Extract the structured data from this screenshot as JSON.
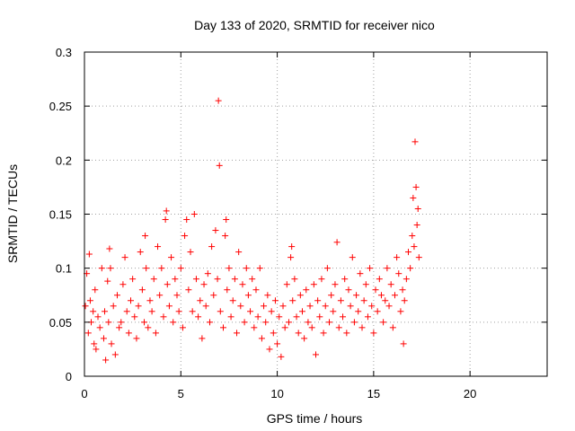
{
  "chart_data": {
    "type": "scatter",
    "title": "Day 133 of 2020, SRMTID for receiver nico",
    "xlabel": "GPS time / hours",
    "ylabel": "SRMTID / TECUs",
    "xlim": [
      0,
      24
    ],
    "ylim": [
      0,
      0.3
    ],
    "xticks": [
      0,
      5,
      10,
      15,
      20
    ],
    "xtick_labels": [
      "0",
      "5",
      "10",
      "15",
      "20"
    ],
    "yticks": [
      0,
      0.05,
      0.1,
      0.15,
      0.2,
      0.25,
      0.3
    ],
    "ytick_labels": [
      "0",
      "0.05",
      "0.1",
      "0.15",
      "0.2",
      "0.25",
      "0.3"
    ],
    "grid": true,
    "marker": "plus",
    "color": "#ff0000",
    "x_range_of_data": [
      0,
      17.35
    ],
    "series": [
      {
        "name": "SRMTID",
        "points": [
          [
            0.05,
            0.065
          ],
          [
            0.12,
            0.095
          ],
          [
            0.2,
            0.04
          ],
          [
            0.25,
            0.113
          ],
          [
            0.3,
            0.07
          ],
          [
            0.35,
            0.05
          ],
          [
            0.45,
            0.06
          ],
          [
            0.5,
            0.03
          ],
          [
            0.55,
            0.08
          ],
          [
            0.6,
            0.025
          ],
          [
            0.7,
            0.055
          ],
          [
            0.8,
            0.045
          ],
          [
            0.9,
            0.1
          ],
          [
            1.0,
            0.035
          ],
          [
            1.05,
            0.06
          ],
          [
            1.1,
            0.015
          ],
          [
            1.2,
            0.088
          ],
          [
            1.25,
            0.05
          ],
          [
            1.3,
            0.118
          ],
          [
            1.35,
            0.1
          ],
          [
            1.4,
            0.03
          ],
          [
            1.5,
            0.065
          ],
          [
            1.6,
            0.02
          ],
          [
            1.7,
            0.075
          ],
          [
            1.8,
            0.045
          ],
          [
            1.9,
            0.05
          ],
          [
            2.0,
            0.085
          ],
          [
            2.1,
            0.11
          ],
          [
            2.2,
            0.06
          ],
          [
            2.3,
            0.04
          ],
          [
            2.4,
            0.07
          ],
          [
            2.5,
            0.09
          ],
          [
            2.6,
            0.055
          ],
          [
            2.7,
            0.035
          ],
          [
            2.8,
            0.065
          ],
          [
            2.9,
            0.115
          ],
          [
            3.0,
            0.08
          ],
          [
            3.1,
            0.05
          ],
          [
            3.15,
            0.13
          ],
          [
            3.2,
            0.1
          ],
          [
            3.3,
            0.045
          ],
          [
            3.4,
            0.07
          ],
          [
            3.5,
            0.06
          ],
          [
            3.6,
            0.09
          ],
          [
            3.7,
            0.04
          ],
          [
            3.8,
            0.12
          ],
          [
            3.9,
            0.075
          ],
          [
            4.0,
            0.1
          ],
          [
            4.1,
            0.055
          ],
          [
            4.2,
            0.145
          ],
          [
            4.25,
            0.153
          ],
          [
            4.3,
            0.085
          ],
          [
            4.4,
            0.065
          ],
          [
            4.5,
            0.11
          ],
          [
            4.6,
            0.05
          ],
          [
            4.7,
            0.09
          ],
          [
            4.8,
            0.075
          ],
          [
            4.9,
            0.06
          ],
          [
            5.0,
            0.1
          ],
          [
            5.1,
            0.045
          ],
          [
            5.2,
            0.13
          ],
          [
            5.3,
            0.145
          ],
          [
            5.4,
            0.08
          ],
          [
            5.5,
            0.115
          ],
          [
            5.6,
            0.06
          ],
          [
            5.7,
            0.15
          ],
          [
            5.8,
            0.09
          ],
          [
            5.9,
            0.055
          ],
          [
            6.0,
            0.07
          ],
          [
            6.1,
            0.035
          ],
          [
            6.2,
            0.085
          ],
          [
            6.3,
            0.065
          ],
          [
            6.4,
            0.095
          ],
          [
            6.5,
            0.05
          ],
          [
            6.6,
            0.12
          ],
          [
            6.7,
            0.075
          ],
          [
            6.8,
            0.135
          ],
          [
            6.9,
            0.09
          ],
          [
            6.95,
            0.255
          ],
          [
            7.0,
            0.195
          ],
          [
            7.05,
            0.06
          ],
          [
            7.2,
            0.045
          ],
          [
            7.3,
            0.13
          ],
          [
            7.35,
            0.145
          ],
          [
            7.4,
            0.08
          ],
          [
            7.5,
            0.1
          ],
          [
            7.6,
            0.055
          ],
          [
            7.7,
            0.07
          ],
          [
            7.8,
            0.09
          ],
          [
            7.9,
            0.04
          ],
          [
            8.0,
            0.115
          ],
          [
            8.1,
            0.065
          ],
          [
            8.2,
            0.085
          ],
          [
            8.3,
            0.05
          ],
          [
            8.4,
            0.1
          ],
          [
            8.5,
            0.075
          ],
          [
            8.6,
            0.06
          ],
          [
            8.7,
            0.09
          ],
          [
            8.8,
            0.045
          ],
          [
            8.9,
            0.08
          ],
          [
            9.0,
            0.055
          ],
          [
            9.1,
            0.1
          ],
          [
            9.2,
            0.035
          ],
          [
            9.3,
            0.065
          ],
          [
            9.4,
            0.05
          ],
          [
            9.5,
            0.075
          ],
          [
            9.6,
            0.025
          ],
          [
            9.7,
            0.06
          ],
          [
            9.8,
            0.04
          ],
          [
            9.9,
            0.07
          ],
          [
            10.0,
            0.03
          ],
          [
            10.1,
            0.055
          ],
          [
            10.2,
            0.018
          ],
          [
            10.3,
            0.065
          ],
          [
            10.4,
            0.045
          ],
          [
            10.5,
            0.085
          ],
          [
            10.6,
            0.05
          ],
          [
            10.7,
            0.11
          ],
          [
            10.75,
            0.12
          ],
          [
            10.8,
            0.07
          ],
          [
            10.9,
            0.09
          ],
          [
            11.0,
            0.055
          ],
          [
            11.1,
            0.04
          ],
          [
            11.2,
            0.075
          ],
          [
            11.3,
            0.06
          ],
          [
            11.4,
            0.035
          ],
          [
            11.5,
            0.08
          ],
          [
            11.6,
            0.05
          ],
          [
            11.7,
            0.065
          ],
          [
            11.8,
            0.045
          ],
          [
            11.9,
            0.085
          ],
          [
            12.0,
            0.02
          ],
          [
            12.1,
            0.07
          ],
          [
            12.2,
            0.055
          ],
          [
            12.3,
            0.09
          ],
          [
            12.4,
            0.04
          ],
          [
            12.5,
            0.065
          ],
          [
            12.6,
            0.1
          ],
          [
            12.7,
            0.05
          ],
          [
            12.8,
            0.075
          ],
          [
            12.9,
            0.06
          ],
          [
            13.0,
            0.085
          ],
          [
            13.1,
            0.124
          ],
          [
            13.2,
            0.045
          ],
          [
            13.3,
            0.07
          ],
          [
            13.4,
            0.055
          ],
          [
            13.5,
            0.09
          ],
          [
            13.6,
            0.04
          ],
          [
            13.7,
            0.08
          ],
          [
            13.8,
            0.065
          ],
          [
            13.9,
            0.11
          ],
          [
            14.0,
            0.05
          ],
          [
            14.1,
            0.075
          ],
          [
            14.2,
            0.06
          ],
          [
            14.3,
            0.095
          ],
          [
            14.4,
            0.045
          ],
          [
            14.5,
            0.07
          ],
          [
            14.6,
            0.085
          ],
          [
            14.7,
            0.055
          ],
          [
            14.8,
            0.1
          ],
          [
            14.9,
            0.065
          ],
          [
            15.0,
            0.04
          ],
          [
            15.1,
            0.08
          ],
          [
            15.2,
            0.06
          ],
          [
            15.3,
            0.09
          ],
          [
            15.4,
            0.075
          ],
          [
            15.5,
            0.05
          ],
          [
            15.6,
            0.07
          ],
          [
            15.7,
            0.1
          ],
          [
            15.8,
            0.065
          ],
          [
            15.9,
            0.085
          ],
          [
            16.0,
            0.045
          ],
          [
            16.1,
            0.075
          ],
          [
            16.2,
            0.11
          ],
          [
            16.3,
            0.095
          ],
          [
            16.4,
            0.06
          ],
          [
            16.5,
            0.08
          ],
          [
            16.55,
            0.03
          ],
          [
            16.6,
            0.07
          ],
          [
            16.7,
            0.09
          ],
          [
            16.8,
            0.115
          ],
          [
            16.9,
            0.1
          ],
          [
            17.0,
            0.13
          ],
          [
            17.05,
            0.165
          ],
          [
            17.1,
            0.12
          ],
          [
            17.15,
            0.217
          ],
          [
            17.2,
            0.175
          ],
          [
            17.25,
            0.14
          ],
          [
            17.3,
            0.155
          ],
          [
            17.35,
            0.11
          ]
        ]
      }
    ]
  }
}
